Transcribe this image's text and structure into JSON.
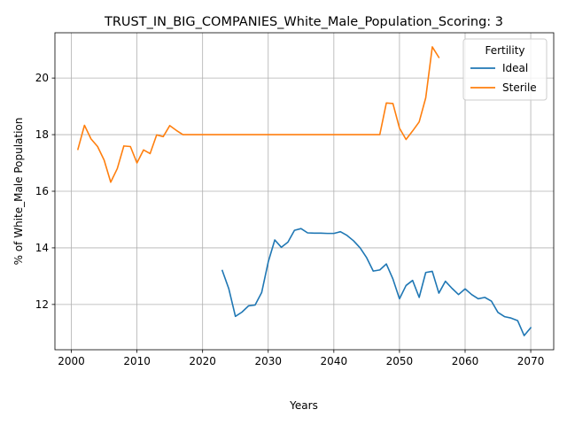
{
  "chart_data": {
    "type": "line",
    "title": "TRUST_IN_BIG_COMPANIES_White_Male_Population_Scoring: 3",
    "xlabel": "Years",
    "ylabel": "% of White_Male Population",
    "xlim": [
      1997.5,
      2073.5
    ],
    "ylim": [
      10.4,
      21.6
    ],
    "xticks": [
      2000,
      2010,
      2020,
      2030,
      2040,
      2050,
      2060,
      2070
    ],
    "yticks": [
      12,
      14,
      16,
      18,
      20
    ],
    "grid": true,
    "legend": {
      "title": "Fertility",
      "position": "top-right"
    },
    "series": [
      {
        "name": "Ideal",
        "color": "#1f77b4",
        "x": [
          2023,
          2024,
          2025,
          2026,
          2027,
          2028,
          2029,
          2030,
          2031,
          2032,
          2033,
          2034,
          2035,
          2036,
          2037,
          2038,
          2039,
          2040,
          2041,
          2042,
          2043,
          2044,
          2045,
          2046,
          2047,
          2048,
          2049,
          2050,
          2051,
          2052,
          2053,
          2054,
          2055,
          2056,
          2057,
          2058,
          2059,
          2060,
          2061,
          2062,
          2063,
          2064,
          2065,
          2066,
          2067,
          2068,
          2069,
          2070
        ],
        "y": [
          13.2,
          12.55,
          11.58,
          11.73,
          11.95,
          11.98,
          12.42,
          13.5,
          14.28,
          14.02,
          14.2,
          14.62,
          14.68,
          14.53,
          14.52,
          14.52,
          14.51,
          14.51,
          14.57,
          14.44,
          14.25,
          14.0,
          13.65,
          13.18,
          13.22,
          13.43,
          12.9,
          12.2,
          12.67,
          12.85,
          12.25,
          13.13,
          13.17,
          12.4,
          12.82,
          12.57,
          12.35,
          12.55,
          12.35,
          12.2,
          12.25,
          12.12,
          11.72,
          11.57,
          11.52,
          11.43,
          10.9,
          11.18
        ]
      },
      {
        "name": "Sterile",
        "color": "#ff7f0e",
        "x": [
          2001,
          2002,
          2003,
          2004,
          2005,
          2006,
          2007,
          2008,
          2009,
          2010,
          2011,
          2012,
          2013,
          2014,
          2015,
          2016,
          2017,
          2018,
          2019,
          2020,
          2021,
          2022,
          2023,
          2024,
          2025,
          2026,
          2027,
          2028,
          2029,
          2030,
          2031,
          2032,
          2033,
          2034,
          2035,
          2036,
          2037,
          2038,
          2039,
          2040,
          2041,
          2042,
          2043,
          2044,
          2045,
          2046,
          2047,
          2048,
          2049,
          2050,
          2051,
          2052,
          2053,
          2054,
          2055,
          2056
        ],
        "y": [
          17.48,
          18.33,
          17.85,
          17.58,
          17.1,
          16.32,
          16.8,
          17.6,
          17.58,
          17.0,
          17.46,
          17.33,
          17.99,
          17.93,
          18.32,
          18.15,
          18.0,
          18.0,
          18.0,
          18.0,
          18.0,
          18.0,
          18.0,
          18.0,
          18.0,
          18.0,
          18.0,
          18.0,
          18.0,
          18.0,
          18.0,
          18.0,
          18.0,
          18.0,
          18.0,
          18.0,
          18.0,
          18.0,
          18.0,
          18.0,
          18.0,
          18.0,
          18.0,
          18.0,
          18.0,
          18.0,
          18.0,
          19.12,
          19.1,
          18.23,
          17.83,
          18.13,
          18.45,
          19.3,
          21.1,
          20.73
        ]
      }
    ]
  }
}
